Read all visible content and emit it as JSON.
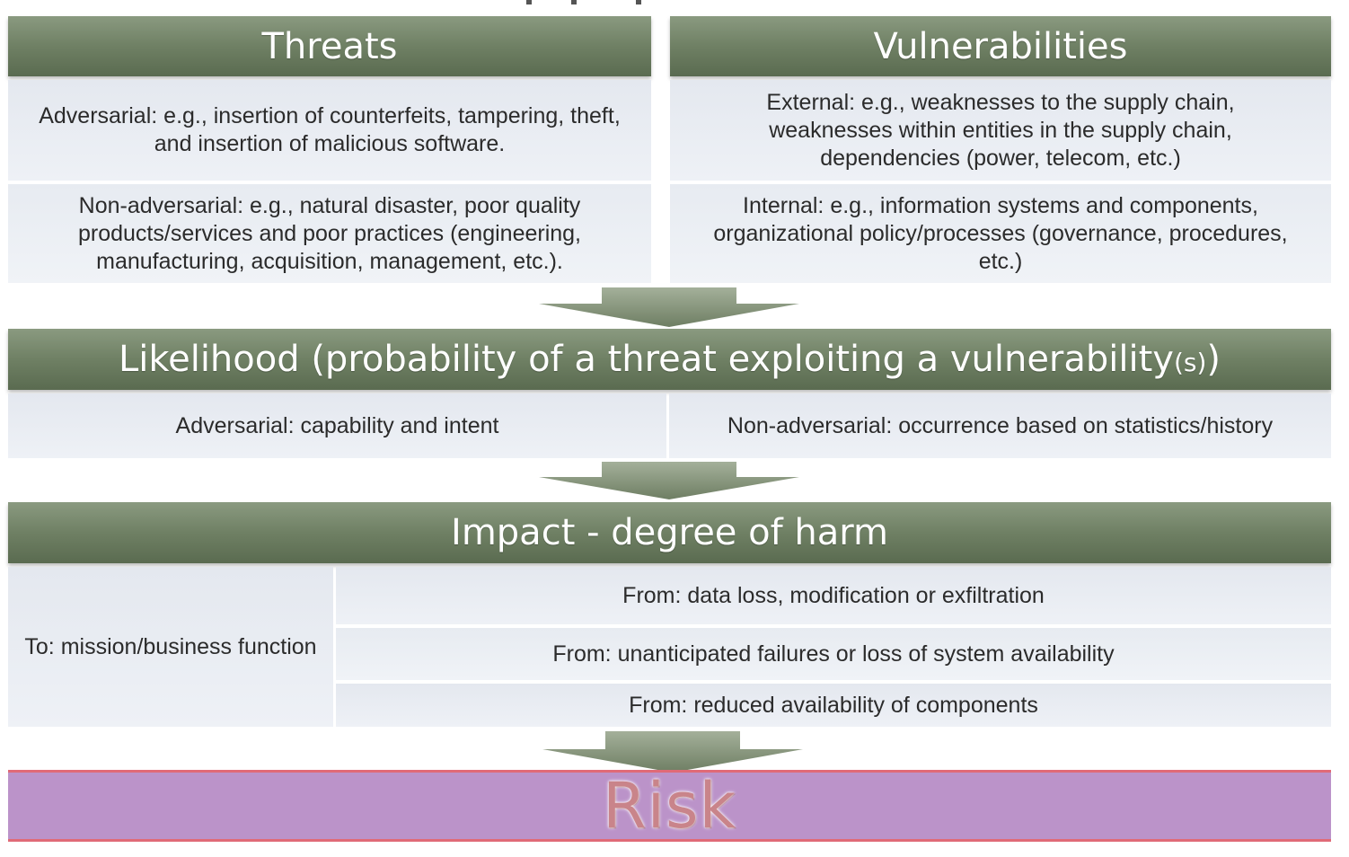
{
  "threats": {
    "title": "Threats",
    "adversarial": "Adversarial: e.g., insertion of counterfeits, tampering, theft, and insertion of malicious software.",
    "non_adversarial": "Non-adversarial: e.g., natural disaster, poor quality products/services and poor practices (engineering, manufacturing, acquisition, management, etc.)."
  },
  "vulnerabilities": {
    "title": "Vulnerabilities",
    "external": "External: e.g., weaknesses to the supply chain, weaknesses within entities in the supply chain, dependencies (power, telecom, etc.)",
    "internal": "Internal: e.g., information systems and components, organizational policy/processes (governance, procedures, etc.)"
  },
  "likelihood": {
    "title_main": "Likelihood (probability of a threat exploiting a vulnerability",
    "title_small": "(s)",
    "title_close": ")",
    "adversarial": "Adversarial: capability and intent",
    "non_adversarial": "Non-adversarial: occurrence based on statistics/history"
  },
  "impact": {
    "title": "Impact - degree of harm",
    "to": "To: mission/business function",
    "from_items": [
      "From: data loss, modification or exfiltration",
      "From: unanticipated failures or loss of system availability",
      "From: reduced availability of components"
    ]
  },
  "risk": {
    "label": "Risk"
  },
  "colors": {
    "header_green": "#6f8064",
    "cell_bg": "#e9edf3",
    "arrow_green": "#7d8c72",
    "risk_fill": "#bb93c9",
    "risk_border": "#e06a77"
  }
}
